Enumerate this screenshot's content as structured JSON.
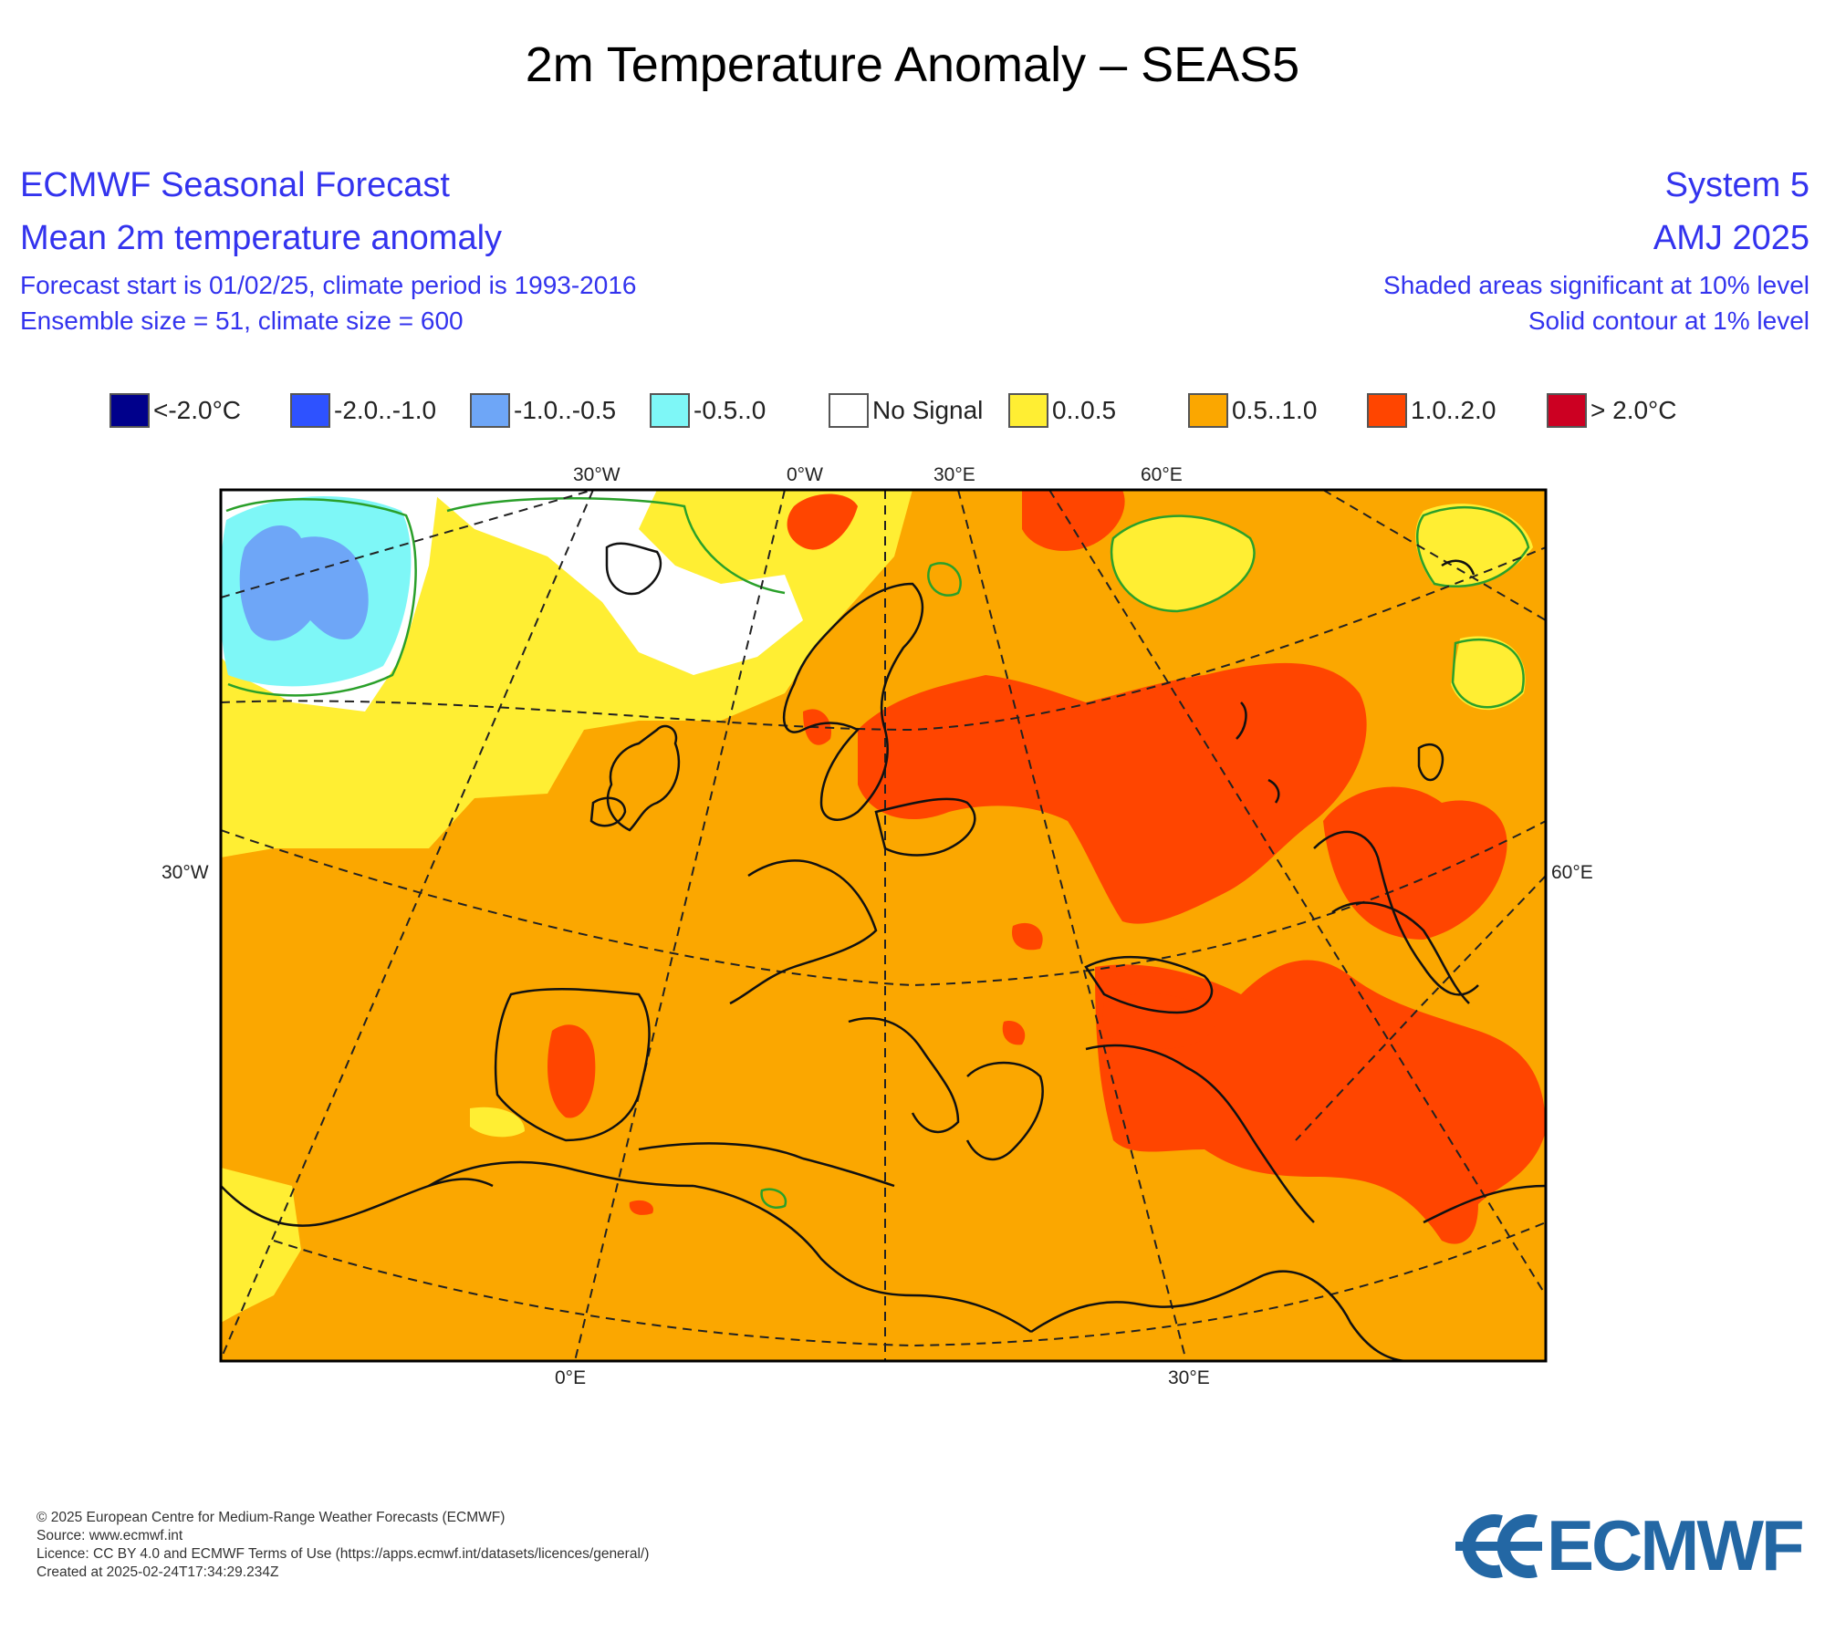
{
  "title": "2m Temperature Anomaly – SEAS5",
  "header": {
    "left_line1": "ECMWF Seasonal Forecast",
    "left_line2": "Mean 2m temperature anomaly",
    "left_line3": "Forecast start is 01/02/25, climate period is 1993-2016",
    "left_line4": "Ensemble size = 51, climate size = 600",
    "right_line1": "System 5",
    "right_line2": "AMJ 2025",
    "right_line3": "Shaded areas significant at 10% level",
    "right_line4": "Solid contour at 1% level"
  },
  "legend": [
    {
      "label": "<-2.0°C",
      "color": "#00008b"
    },
    {
      "label": "-2.0..-1.0",
      "color": "#2e52ff"
    },
    {
      "label": "-1.0..-0.5",
      "color": "#6ea6f7"
    },
    {
      "label": "-0.5..0",
      "color": "#7ef7f7"
    },
    {
      "label": "No Signal",
      "color": "#ffffff"
    },
    {
      "label": "0..0.5",
      "color": "#ffee33"
    },
    {
      "label": "0.5..1.0",
      "color": "#fba700"
    },
    {
      "label": "1.0..2.0",
      "color": "#ff4500"
    },
    {
      "label": "> 2.0°C",
      "color": "#cc0022"
    }
  ],
  "map": {
    "top_labels": [
      "30°W",
      "0°W",
      "30°E",
      "60°E"
    ],
    "left_label": "30°W",
    "right_label": "60°E",
    "bottom_labels": [
      "0°E",
      "30°E"
    ],
    "contour_color": "#2aa02a",
    "coast_color": "#111111"
  },
  "footer": {
    "line1": "© 2025 European Centre for Medium-Range Weather Forecasts (ECMWF)",
    "line2": "Source: www.ecmwf.int",
    "line3": "Licence: CC BY 4.0 and ECMWF Terms of Use (https://apps.ecmwf.int/datasets/licences/general/)",
    "line4": "Created at 2025-02-24T17:34:29.234Z"
  },
  "logo": {
    "text": "ECMWF",
    "color": "#2367a4"
  }
}
